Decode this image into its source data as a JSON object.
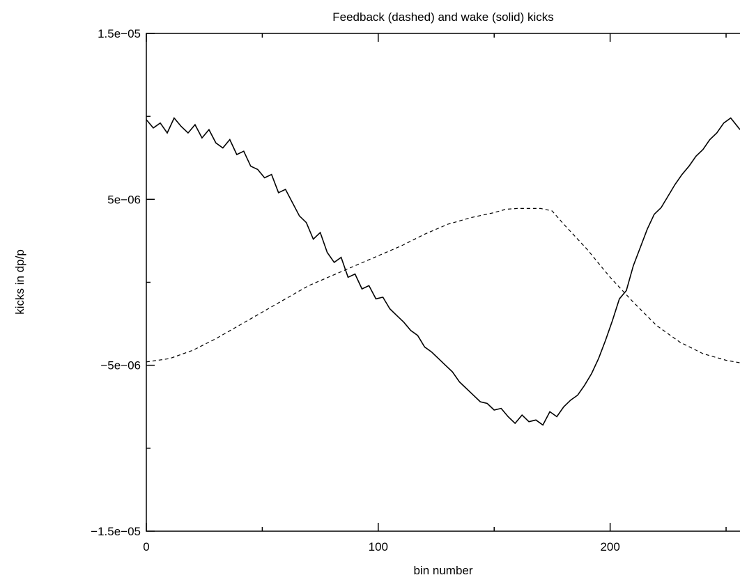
{
  "chart_data": {
    "type": "line",
    "title": "Feedback (dashed) and wake (solid) kicks",
    "xlabel": "bin number",
    "ylabel": "kicks in dp/p",
    "xlim": [
      0,
      256
    ],
    "ylim": [
      -1.5e-05,
      1.5e-05
    ],
    "x_ticks": [
      0,
      100,
      200
    ],
    "x_tick_labels": [
      "0",
      "100",
      "200"
    ],
    "y_ticks": [
      -1.5e-05,
      -5e-06,
      5e-06,
      1.5e-05
    ],
    "y_tick_labels": [
      "−1.5e−05",
      "−5e−06",
      "5e−06",
      "1.5e−05"
    ],
    "grid": false,
    "series": [
      {
        "style": "dashed",
        "x": [
          0,
          10,
          20,
          30,
          40,
          50,
          60,
          70,
          80,
          90,
          100,
          110,
          120,
          130,
          140,
          150,
          155,
          160,
          165,
          170,
          175,
          180,
          190,
          200,
          210,
          220,
          230,
          240,
          250,
          256
        ],
        "y": [
          -4.8e-06,
          -4.6e-06,
          -4.1e-06,
          -3.4e-06,
          -2.6e-06,
          -1.8e-06,
          -1e-06,
          -2e-07,
          4e-07,
          1e-06,
          1.6e-06,
          2.2e-06,
          2.9e-06,
          3.5e-06,
          3.9e-06,
          4.2e-06,
          4.4e-06,
          4.45e-06,
          4.45e-06,
          4.45e-06,
          4.3e-06,
          3.5e-06,
          2e-06,
          3e-07,
          -1.2e-06,
          -2.6e-06,
          -3.6e-06,
          -4.3e-06,
          -4.7e-06,
          -4.85e-06
        ]
      },
      {
        "style": "solid",
        "x": [
          0,
          3,
          6,
          9,
          12,
          15,
          18,
          21,
          24,
          27,
          30,
          33,
          36,
          39,
          42,
          45,
          48,
          51,
          54,
          57,
          60,
          63,
          66,
          69,
          72,
          75,
          78,
          81,
          84,
          87,
          90,
          93,
          96,
          99,
          102,
          105,
          108,
          111,
          114,
          117,
          120,
          123,
          126,
          129,
          132,
          135,
          138,
          141,
          144,
          147,
          150,
          153,
          156,
          159,
          162,
          165,
          168,
          171,
          174,
          177,
          180,
          183,
          186,
          189,
          192,
          195,
          198,
          201,
          204,
          207,
          210,
          213,
          216,
          219,
          222,
          225,
          228,
          231,
          234,
          237,
          240,
          243,
          246,
          249,
          252,
          256
        ],
        "y": [
          9.8e-06,
          9.3e-06,
          9.6e-06,
          9e-06,
          9.9e-06,
          9.4e-06,
          9e-06,
          9.5e-06,
          8.7e-06,
          9.2e-06,
          8.4e-06,
          8.1e-06,
          8.6e-06,
          7.7e-06,
          7.9e-06,
          7e-06,
          6.8e-06,
          6.3e-06,
          6.5e-06,
          5.4e-06,
          5.6e-06,
          4.8e-06,
          4e-06,
          3.6e-06,
          2.6e-06,
          3e-06,
          1.8e-06,
          1.2e-06,
          1.5e-06,
          3e-07,
          5e-07,
          -4e-07,
          -2e-07,
          -1e-06,
          -9e-07,
          -1.6e-06,
          -2e-06,
          -2.4e-06,
          -2.9e-06,
          -3.2e-06,
          -3.9e-06,
          -4.2e-06,
          -4.6e-06,
          -5e-06,
          -5.4e-06,
          -6e-06,
          -6.4e-06,
          -6.8e-06,
          -7.2e-06,
          -7.3e-06,
          -7.7e-06,
          -7.6e-06,
          -8.1e-06,
          -8.5e-06,
          -8e-06,
          -8.4e-06,
          -8.3e-06,
          -8.6e-06,
          -7.8e-06,
          -8.1e-06,
          -7.5e-06,
          -7.1e-06,
          -6.8e-06,
          -6.2e-06,
          -5.5e-06,
          -4.6e-06,
          -3.5e-06,
          -2.3e-06,
          -1e-06,
          -5e-07,
          1e-06,
          2.1e-06,
          3.2e-06,
          4.1e-06,
          4.5e-06,
          5.2e-06,
          5.9e-06,
          6.5e-06,
          7e-06,
          7.6e-06,
          8e-06,
          8.6e-06,
          9e-06,
          9.6e-06,
          9.9e-06,
          9.2e-06
        ]
      }
    ]
  }
}
